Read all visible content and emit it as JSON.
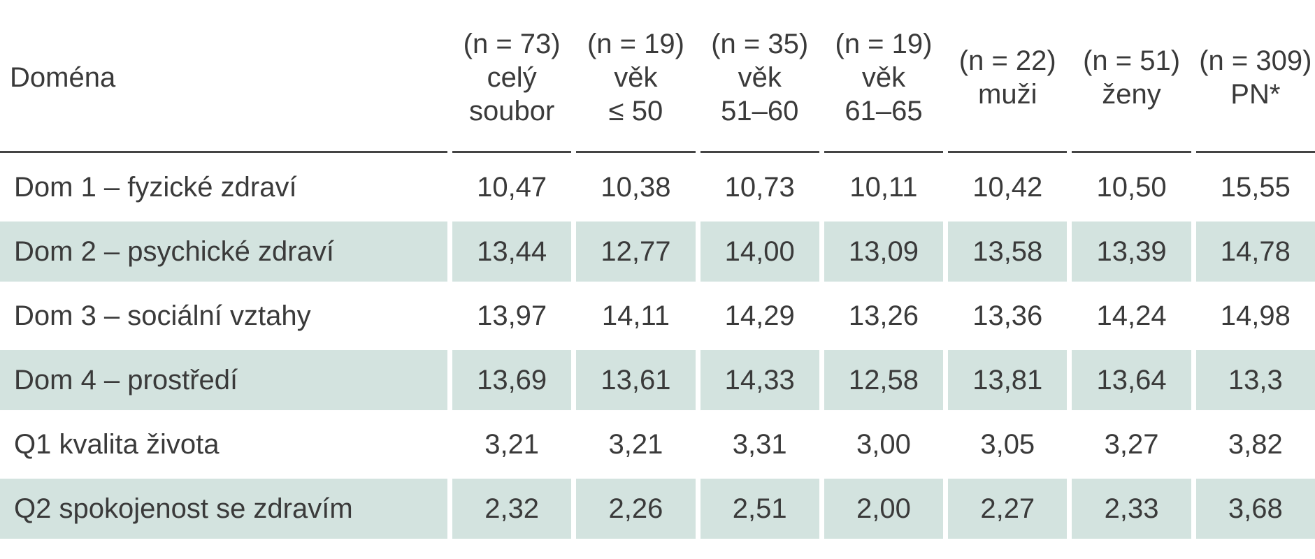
{
  "header": {
    "title": "Doména",
    "columns": [
      [
        "(n = 73)",
        "celý",
        "soubor"
      ],
      [
        "(n = 19)",
        "věk",
        "≤ 50"
      ],
      [
        "(n = 35)",
        "věk",
        "51–60"
      ],
      [
        "(n = 19)",
        "věk",
        "61–65"
      ],
      [
        "(n = 22)",
        "muži"
      ],
      [
        "(n = 51)",
        "ženy"
      ],
      [
        "(n = 309)",
        "PN*"
      ]
    ]
  },
  "table": {
    "rows": [
      [
        "Dom 1 – fyzické zdraví",
        "10,47",
        "10,38",
        "10,73",
        "10,11",
        "10,42",
        "10,50",
        "15,55"
      ],
      [
        "Dom 2 – psychické zdraví",
        "13,44",
        "12,77",
        "14,00",
        "13,09",
        "13,58",
        "13,39",
        "14,78"
      ],
      [
        "Dom 3 – sociální vztahy",
        "13,97",
        "14,11",
        "14,29",
        "13,26",
        "13,36",
        "14,24",
        "14,98"
      ],
      [
        "Dom 4 – prostředí",
        "13,69",
        "13,61",
        "14,33",
        "12,58",
        "13,81",
        "13,64",
        "13,3"
      ],
      [
        "Q1 kvalita života",
        "3,21",
        "3,21",
        "3,31",
        "3,00",
        "3,05",
        "3,27",
        "3,82"
      ],
      [
        "Q2 spokojenost se zdravím",
        "2,32",
        "2,26",
        "2,51",
        "2,00",
        "2,27",
        "2,33",
        "3,68"
      ]
    ]
  }
}
